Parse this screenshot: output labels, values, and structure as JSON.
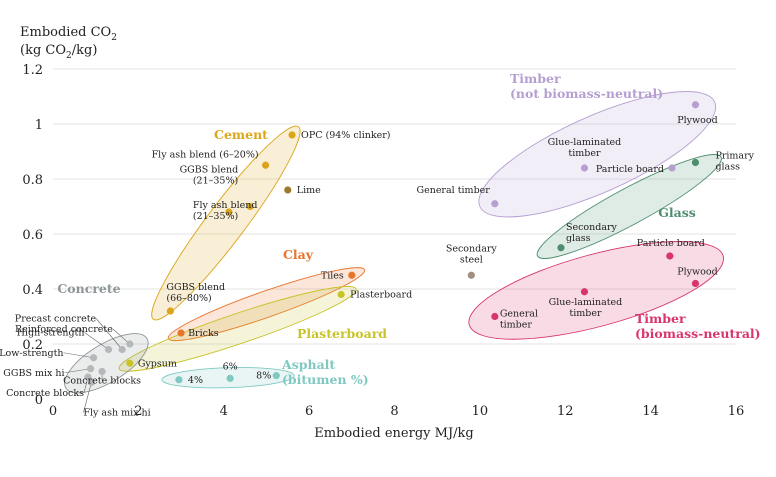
{
  "chart_data": {
    "type": "scatter",
    "title": "",
    "ylabel_line1": "Embodied CO",
    "ylabel_sub1": "2",
    "ylabel_line2a": "(kg CO",
    "ylabel_sub2": "2",
    "ylabel_line2b": "/kg)",
    "xlabel": "Embodied energy MJ/kg",
    "xlim": [
      0,
      16
    ],
    "ylim": [
      0,
      1.2
    ],
    "x_ticks": [
      0,
      2,
      4,
      6,
      8,
      10,
      12,
      14,
      16
    ],
    "y_ticks": [
      0,
      0.2,
      0.4,
      0.6,
      0.8,
      1,
      1.2
    ],
    "y_tick_labels": [
      "0",
      "0.2",
      "0.4",
      "0.6",
      "0.8",
      "1",
      "1.2"
    ],
    "grid": true,
    "groups": [
      {
        "name": "Cement",
        "color": "#dba51a",
        "name_lines": [
          "Cement"
        ]
      },
      {
        "name": "Clay",
        "color": "#e8732b",
        "name_lines": [
          "Clay"
        ]
      },
      {
        "name": "Plasterboard",
        "color": "#c8c32a",
        "name_lines": [
          "Plasterboard"
        ]
      },
      {
        "name": "Concrete",
        "color": "#8e9598",
        "name_lines": [
          "Concrete"
        ]
      },
      {
        "name": "Asphalt (bitumen %)",
        "color": "#7fc9c2",
        "name_lines": [
          "Asphalt",
          "(bitumen %)"
        ]
      },
      {
        "name": "Timber (not biomass-neutral)",
        "color": "#b59fd1",
        "name_lines": [
          "Timber",
          "(not biomass-neutral)"
        ]
      },
      {
        "name": "Glass",
        "color": "#4e8e6f",
        "name_lines": [
          "Glass"
        ]
      },
      {
        "name": "Timber (biomass-neutral)",
        "color": "#d8356a",
        "name_lines": [
          "Timber",
          "(biomass-neutral)"
        ]
      },
      {
        "name": "Steel",
        "color": "#a09080",
        "name_lines": []
      }
    ],
    "points": [
      {
        "group": "Cement",
        "x": 5.6,
        "y": 0.96,
        "color": "#dba51a",
        "label_lines": [
          "OPC (94% clinker)"
        ]
      },
      {
        "group": "Cement",
        "x": 4.98,
        "y": 0.85,
        "color": "#dba51a",
        "label_lines": [
          "Fly ash blend (6–20%)"
        ]
      },
      {
        "group": "Cement",
        "x": 4.62,
        "y": 0.7,
        "color": "#dba51a",
        "label_lines": [
          "GGBS blend",
          "(21–35%)"
        ]
      },
      {
        "group": "Cement",
        "x": 4.12,
        "y": 0.68,
        "color": "#dba51a",
        "label_lines": [
          "Fly ash blend",
          "(21–35%)"
        ]
      },
      {
        "group": "Cement",
        "x": 5.5,
        "y": 0.76,
        "color": "#9c7a2e",
        "label_lines": [
          "Lime"
        ]
      },
      {
        "group": "Cement",
        "x": 2.75,
        "y": 0.32,
        "color": "#dba51a",
        "label_lines": [
          "GGBS blend",
          "(66–80%)"
        ]
      },
      {
        "group": "Clay",
        "x": 7.0,
        "y": 0.45,
        "color": "#e8732b",
        "label_lines": [
          "Tiles"
        ]
      },
      {
        "group": "Clay",
        "x": 3.0,
        "y": 0.24,
        "color": "#e8732b",
        "label_lines": [
          "Bricks"
        ]
      },
      {
        "group": "Plasterboard",
        "x": 6.75,
        "y": 0.38,
        "color": "#c8c32a",
        "label_lines": [
          "Plasterboard"
        ]
      },
      {
        "group": "Plasterboard",
        "x": 1.8,
        "y": 0.13,
        "color": "#c8c32a",
        "label_lines": [
          "Gypsum"
        ]
      },
      {
        "group": "Concrete",
        "x": 1.8,
        "y": 0.2,
        "color": "#b4b8ba",
        "label_lines": [
          "Reinforced concrete"
        ]
      },
      {
        "group": "Concrete",
        "x": 1.62,
        "y": 0.18,
        "color": "#b4b8ba",
        "label_lines": [
          "Precast concrete"
        ]
      },
      {
        "group": "Concrete",
        "x": 1.3,
        "y": 0.18,
        "color": "#b4b8ba",
        "label_lines": [
          "High-strength"
        ]
      },
      {
        "group": "Concrete",
        "x": 0.95,
        "y": 0.15,
        "color": "#b4b8ba",
        "label_lines": [
          "Low-strength"
        ]
      },
      {
        "group": "Concrete",
        "x": 0.88,
        "y": 0.11,
        "color": "#b4b8ba",
        "label_lines": [
          "GGBS mix hi"
        ]
      },
      {
        "group": "Concrete",
        "x": 1.15,
        "y": 0.1,
        "color": "#b4b8ba",
        "label_lines": [
          "Concrete blocks"
        ]
      },
      {
        "group": "Concrete",
        "x": 0.82,
        "y": 0.08,
        "color": "#b4b8ba",
        "label_lines": [
          "Concrete blocks"
        ]
      },
      {
        "group": "Concrete",
        "x": 0.9,
        "y": 0.06,
        "color": "#b4b8ba",
        "label_lines": [
          "Fly ash mix hi"
        ]
      },
      {
        "group": "Asphalt (bitumen %)",
        "x": 2.95,
        "y": 0.07,
        "color": "#7fc9c2",
        "label_lines": [
          "4%"
        ]
      },
      {
        "group": "Asphalt (bitumen %)",
        "x": 4.15,
        "y": 0.075,
        "color": "#7fc9c2",
        "label_lines": [
          "6%"
        ]
      },
      {
        "group": "Asphalt (bitumen %)",
        "x": 5.23,
        "y": 0.085,
        "color": "#7fc9c2",
        "label_lines": [
          "8%"
        ]
      },
      {
        "group": "Timber (not biomass-neutral)",
        "x": 15.05,
        "y": 1.07,
        "color": "#b59fd1",
        "label_lines": [
          "Plywood"
        ]
      },
      {
        "group": "Timber (not biomass-neutral)",
        "x": 12.45,
        "y": 0.84,
        "color": "#b59fd1",
        "label_lines": [
          "Glue-laminated",
          "timber"
        ]
      },
      {
        "group": "Timber (not biomass-neutral)",
        "x": 14.5,
        "y": 0.84,
        "color": "#b59fd1",
        "label_lines": [
          "Particle board"
        ]
      },
      {
        "group": "Timber (not biomass-neutral)",
        "x": 10.35,
        "y": 0.71,
        "color": "#b59fd1",
        "label_lines": [
          "General timber"
        ]
      },
      {
        "group": "Glass",
        "x": 15.05,
        "y": 0.86,
        "color": "#4e8e6f",
        "label_lines": [
          "Primary",
          "glass"
        ]
      },
      {
        "group": "Glass",
        "x": 11.9,
        "y": 0.55,
        "color": "#4e8e6f",
        "label_lines": [
          "Secondary",
          "glass"
        ]
      },
      {
        "group": "Steel",
        "x": 9.8,
        "y": 0.45,
        "color": "#a09080",
        "label_lines": [
          "Secondary",
          "steel"
        ]
      },
      {
        "group": "Timber (biomass-neutral)",
        "x": 14.45,
        "y": 0.52,
        "color": "#d8356a",
        "label_lines": [
          "Particle board"
        ]
      },
      {
        "group": "Timber (biomass-neutral)",
        "x": 15.05,
        "y": 0.42,
        "color": "#d8356a",
        "label_lines": [
          "Plywood"
        ]
      },
      {
        "group": "Timber (biomass-neutral)",
        "x": 12.45,
        "y": 0.39,
        "color": "#d8356a",
        "label_lines": [
          "Glue-laminated",
          "timber"
        ]
      },
      {
        "group": "Timber (biomass-neutral)",
        "x": 10.35,
        "y": 0.3,
        "color": "#d8356a",
        "label_lines": [
          "General",
          "timber"
        ]
      }
    ]
  }
}
